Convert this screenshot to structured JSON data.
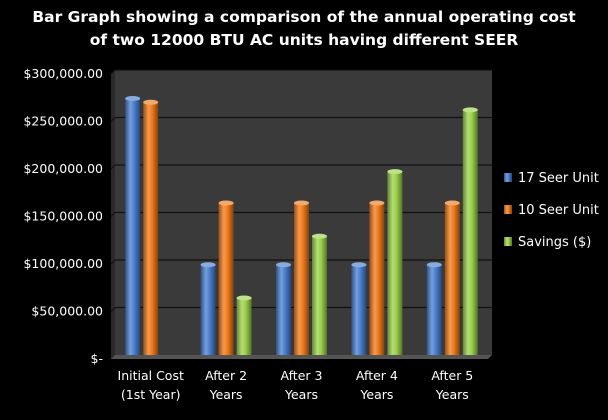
{
  "title_lines": [
    "Bar Graph showing a comparison of the annual operating cost",
    "of two 12000  BTU AC units having different SEER"
  ],
  "chart_data": {
    "type": "bar",
    "title": "Bar Graph showing a comparison of the annual operating cost of two 12000  BTU AC units having different SEER",
    "categories": [
      [
        "Initial Cost",
        "(1st Year)"
      ],
      [
        "After 2",
        "Years"
      ],
      [
        "After 3",
        "Years"
      ],
      [
        "After 4",
        "Years"
      ],
      [
        "After 5",
        "Years"
      ]
    ],
    "series": [
      {
        "name": "17 Seer Unit",
        "color": "#4a7fd0",
        "values": [
          270000,
          95000,
          95000,
          95000,
          95000
        ]
      },
      {
        "name": "10 Seer Unit",
        "color": "#f07a1a",
        "values": [
          266000,
          160000,
          160000,
          160000,
          160000
        ]
      },
      {
        "name": "Savings ($)",
        "color": "#9bd14a",
        "values": [
          null,
          60000,
          125000,
          193000,
          258000
        ]
      }
    ],
    "ylim": [
      0,
      300000
    ],
    "yticks": [
      0,
      50000,
      100000,
      150000,
      200000,
      250000,
      300000
    ],
    "ytick_labels": [
      "$-",
      "$50,000.00",
      "$100,000.00",
      "$150,000.00",
      "$200,000.00",
      "$250,000.00",
      "$300,000.00"
    ],
    "grid": true,
    "legend_position": "right",
    "style": "3d-cylinder-bars",
    "background": "#000000",
    "plot_background": "#3a3a3a",
    "gridline_color": "#111111"
  }
}
